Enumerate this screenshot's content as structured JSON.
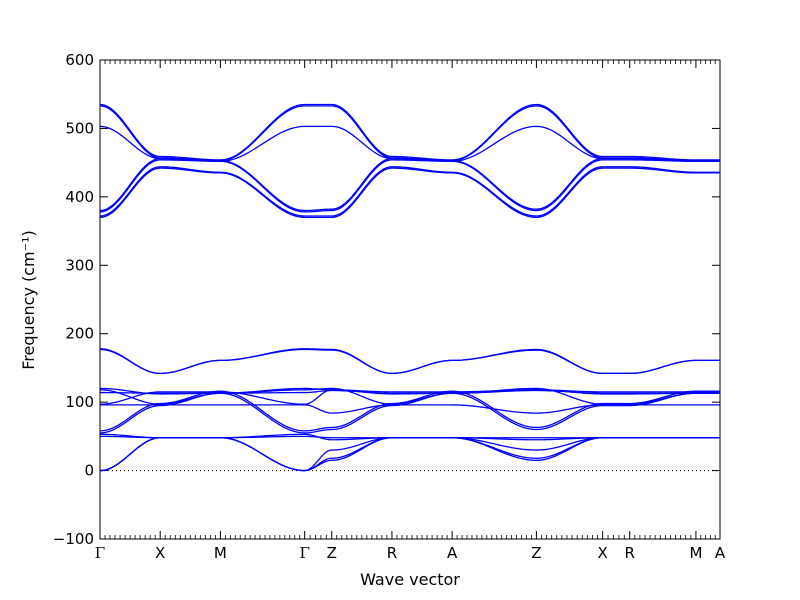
{
  "chart_data": {
    "type": "line",
    "title": "",
    "xlabel": "Wave vector",
    "ylabel": "Frequency (cm⁻¹)",
    "ylim": [
      -100,
      600
    ],
    "yticks": [
      -100,
      0,
      100,
      200,
      300,
      400,
      500,
      600
    ],
    "xlim": [
      0,
      10.3
    ],
    "high_symmetry_points": [
      {
        "label": "Γ",
        "x": 0.0
      },
      {
        "label": "X",
        "x": 1.0
      },
      {
        "label": "M",
        "x": 2.0
      },
      {
        "label": "Γ",
        "x": 3.4
      },
      {
        "label": "Z",
        "x": 3.85
      },
      {
        "label": "R",
        "x": 4.85
      },
      {
        "label": "A",
        "x": 5.85
      },
      {
        "label": "Z",
        "x": 7.25
      },
      {
        "label": "X",
        "x": 8.35
      },
      {
        "label": "R",
        "x": 8.8
      },
      {
        "label": "M",
        "x": 9.9
      },
      {
        "label": "A",
        "x": 10.3
      }
    ],
    "zero_line": {
      "y": 0,
      "style": "dotted"
    },
    "line_color": "#0000ff",
    "series": [
      {
        "y": [
          0,
          48,
          48,
          0,
          15,
          48,
          48,
          15,
          48,
          48,
          48,
          48
        ]
      },
      {
        "y": [
          0,
          48,
          48,
          0,
          18,
          48,
          48,
          18,
          48,
          48,
          48,
          48
        ]
      },
      {
        "y": [
          0,
          48,
          48,
          0,
          30,
          48,
          48,
          30,
          48,
          48,
          48,
          48
        ]
      },
      {
        "y": [
          50,
          48,
          48,
          50,
          48,
          48,
          48,
          48,
          48,
          48,
          48,
          48
        ]
      },
      {
        "y": [
          53,
          48,
          48,
          53,
          45,
          48,
          48,
          45,
          48,
          48,
          48,
          48
        ]
      },
      {
        "y": [
          55,
          95,
          113,
          55,
          60,
          95,
          113,
          60,
          95,
          95,
          113,
          113
        ]
      },
      {
        "y": [
          58,
          98,
          116,
          58,
          63,
          98,
          116,
          63,
          98,
          98,
          116,
          116
        ]
      },
      {
        "y": [
          96,
          96,
          96,
          96,
          84,
          96,
          96,
          84,
          96,
          96,
          96,
          96
        ]
      },
      {
        "y": [
          97,
          115,
          115,
          97,
          118,
          115,
          115,
          118,
          115,
          115,
          115,
          115
        ]
      },
      {
        "y": [
          114,
          113,
          113,
          114,
          117,
          113,
          113,
          117,
          113,
          113,
          113,
          113
        ]
      },
      {
        "y": [
          118,
          97,
          113,
          118,
          120,
          97,
          113,
          120,
          97,
          97,
          113,
          113
        ]
      },
      {
        "y": [
          120,
          112,
          113,
          120,
          118,
          112,
          113,
          118,
          112,
          112,
          113,
          113
        ]
      },
      {
        "y": [
          177,
          142,
          161,
          177,
          176,
          142,
          161,
          176,
          142,
          142,
          161,
          161
        ]
      },
      {
        "y": [
          178,
          142,
          161,
          178,
          177,
          142,
          161,
          177,
          142,
          142,
          161,
          161
        ]
      },
      {
        "y": [
          370,
          442,
          435,
          370,
          370,
          442,
          435,
          370,
          442,
          442,
          435,
          435
        ]
      },
      {
        "y": [
          372,
          444,
          436,
          372,
          372,
          444,
          436,
          372,
          444,
          444,
          436,
          436
        ]
      },
      {
        "y": [
          378,
          454,
          452,
          378,
          380,
          454,
          452,
          380,
          454,
          454,
          452,
          452
        ]
      },
      {
        "y": [
          380,
          456,
          453,
          380,
          382,
          456,
          453,
          382,
          456,
          456,
          453,
          453
        ]
      },
      {
        "y": [
          503,
          456,
          452,
          503,
          503,
          456,
          452,
          503,
          456,
          456,
          452,
          452
        ]
      },
      {
        "y": [
          533,
          457,
          453,
          533,
          533,
          457,
          453,
          533,
          457,
          457,
          453,
          453
        ]
      },
      {
        "y": [
          535,
          459,
          454,
          535,
          535,
          459,
          454,
          535,
          459,
          459,
          454,
          454
        ]
      }
    ]
  }
}
